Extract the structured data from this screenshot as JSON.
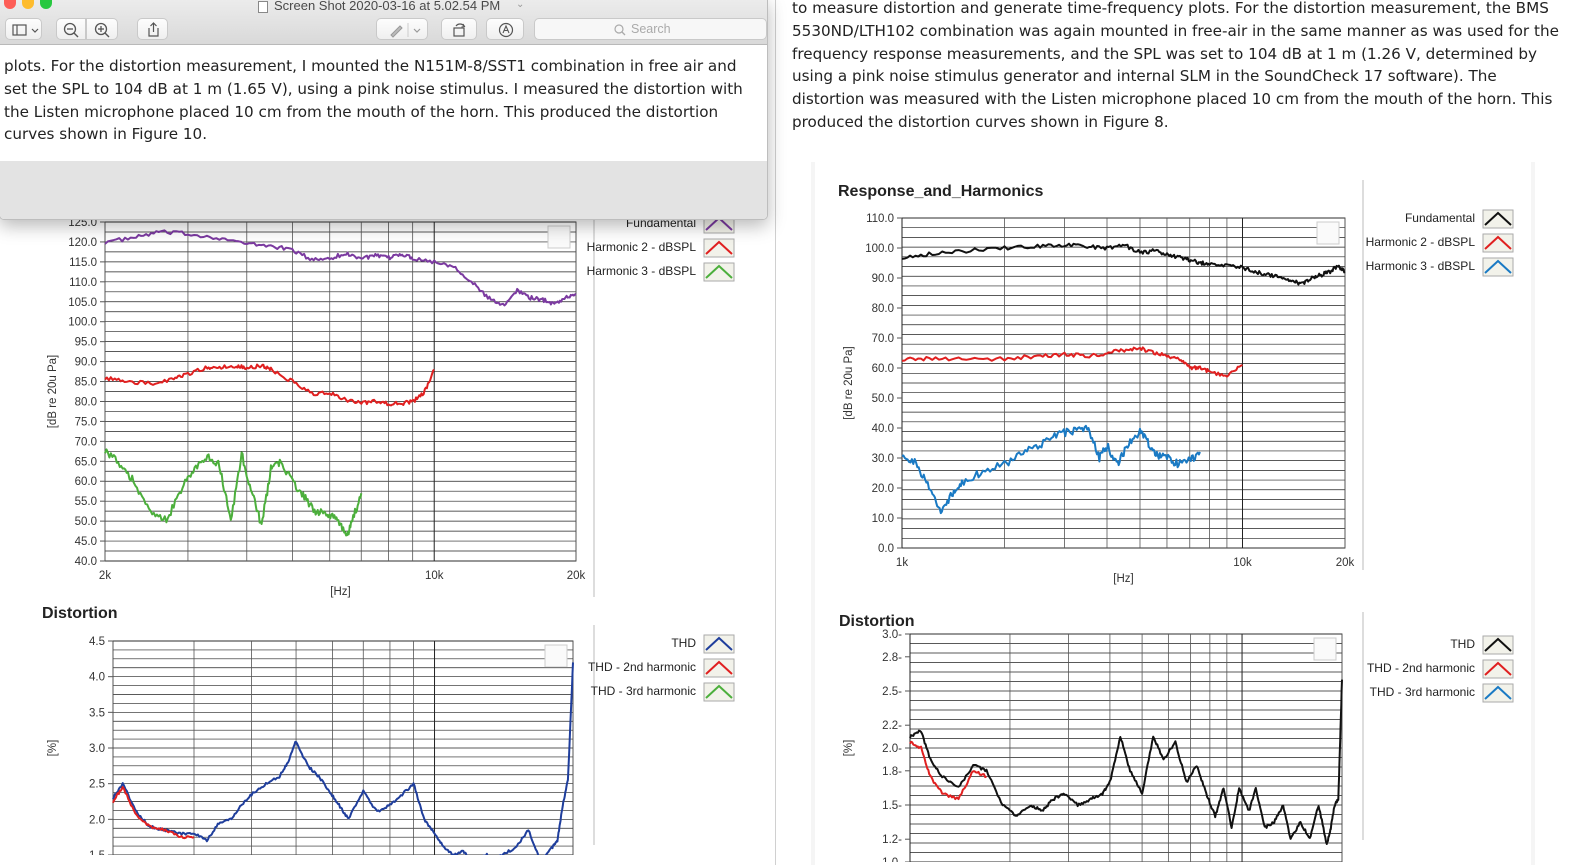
{
  "window": {
    "title": "Screen Shot 2020-03-16 at 5.02.54 PM",
    "search_placeholder": "Search",
    "text": "plots. For the distortion measurement, I mounted the N151M-8/SST1 combination in free air and set the SPL to 104 dB at 1 m (1.65 V), using a pink noise stimulus. I measured the distortion with the Listen microphone placed 10 cm from the mouth of the horn. This produced the distortion curves shown in Figure 10.",
    "icons": [
      "sidebar-toggle-icon",
      "zoom-out-icon",
      "zoom-in-icon",
      "share-icon",
      "markup-pen-icon",
      "rotate-icon",
      "annotate-icon",
      "search-icon"
    ]
  },
  "right_article": {
    "text": "to measure distortion and generate time-frequency plots. For the distortion measurement, the BMS 5530ND/LTH102 combination was again mounted in free-air in the same manner as was used for the frequency response measurements, and the SPL was set to 104 dB at 1 m (1.26 V, determined by using a pink noise stimulus generator and internal SLM in the SoundCheck 17 software). The distortion was measured with the Listen microphone placed 10 cm from the mouth of the horn. This produced the distortion curves shown in Figure 8."
  },
  "left_article": {
    "chart2_title": "Distortion"
  },
  "chart_data": [
    {
      "id": "left-response",
      "type": "line",
      "title": "",
      "xlabel": "[Hz]",
      "ylabel": "[dB re 20u Pa]",
      "xscale": "log",
      "xlim": [
        2000,
        20000
      ],
      "ylim": [
        40,
        125
      ],
      "xticks": [
        2000,
        10000,
        20000
      ],
      "xtick_labels": [
        "2k",
        "10k",
        "20k"
      ],
      "yticks": [
        40,
        45,
        50,
        55,
        60,
        65,
        70,
        75,
        80,
        85,
        90,
        95,
        100,
        105,
        110,
        115,
        120,
        125
      ],
      "ytick_labels": [
        "40.0",
        "45.0",
        "50.0",
        "55.0",
        "60.0",
        "65.0",
        "70.0",
        "75.0",
        "80.0",
        "85.0",
        "90.0",
        "95.0",
        "100.0",
        "105.0",
        "110.0",
        "115.0",
        "120.0",
        "125.0"
      ],
      "legend_position": "right",
      "series": [
        {
          "name": "Fundamental",
          "color": "#7b3aa0",
          "x": [
            2000,
            2300,
            2600,
            3000,
            3500,
            4000,
            4500,
            5000,
            5500,
            6000,
            6500,
            7000,
            7500,
            8000,
            8500,
            9000,
            10000,
            11000,
            12000,
            13000,
            14000,
            15000,
            16000,
            17000,
            18000,
            19000,
            20000
          ],
          "y": [
            120,
            121,
            122.5,
            122,
            121,
            119.5,
            119,
            118,
            115.5,
            116,
            117,
            116,
            116.5,
            116,
            117,
            116,
            115,
            114,
            110,
            106,
            104,
            108,
            106,
            105.5,
            104.5,
            106,
            107
          ]
        },
        {
          "name": "Harmonic 2 - dBSPL",
          "color": "#e02020",
          "x": [
            2000,
            2200,
            2500,
            2800,
            3000,
            3300,
            3500,
            3800,
            4000,
            4300,
            4500,
            5000,
            5500,
            6000,
            6500,
            7000,
            7500,
            8000,
            8500,
            9000,
            9500,
            10000
          ],
          "y": [
            86,
            85,
            84.5,
            85.5,
            87,
            88.5,
            88.5,
            89,
            88.5,
            89,
            88,
            85,
            82,
            82,
            80.5,
            79.5,
            80,
            79.5,
            79.5,
            80,
            82,
            88
          ]
        },
        {
          "name": "Harmonic 3 - dBSPL",
          "color": "#4caf3c",
          "x": [
            2000,
            2150,
            2300,
            2500,
            2700,
            2900,
            3100,
            3300,
            3500,
            3700,
            3900,
            4100,
            4300,
            4500,
            4700,
            5000,
            5300,
            5600,
            5900,
            6200,
            6500,
            6700,
            7000
          ],
          "y": [
            68,
            64,
            60,
            52,
            50,
            58,
            63,
            66,
            64,
            50,
            67,
            57,
            49,
            63,
            65,
            60,
            56,
            52,
            52,
            51,
            46,
            50,
            57
          ]
        }
      ]
    },
    {
      "id": "left-distortion",
      "type": "line",
      "title": "Distortion",
      "xlabel": "",
      "ylabel": "[%]",
      "xscale": "log",
      "xlim": [
        2000,
        20000
      ],
      "ylim": [
        1.5,
        4.5
      ],
      "yticks": [
        1.5,
        2.0,
        2.5,
        3.0,
        3.5,
        4.0,
        4.5
      ],
      "ytick_labels": [
        "1.5",
        "2.0",
        "2.5",
        "3.0",
        "3.5",
        "4.0",
        "4.5"
      ],
      "legend_position": "right",
      "series": [
        {
          "name": "THD",
          "color": "#1f3e9c",
          "x": [
            2000,
            2100,
            2250,
            2400,
            2600,
            2800,
            3000,
            3200,
            3400,
            3600,
            3800,
            4000,
            4300,
            4600,
            4800,
            5000,
            5300,
            5600,
            5900,
            6200,
            6500,
            7000,
            7500,
            8000,
            8500,
            9000,
            9500,
            10000,
            10500,
            11000,
            11500,
            12000,
            12500,
            13000,
            13500,
            14000,
            15000,
            16000,
            17000,
            18000,
            18500,
            19000,
            19500,
            20000
          ],
          "y": [
            2.3,
            2.5,
            2.1,
            1.9,
            1.85,
            1.8,
            1.8,
            1.7,
            1.95,
            2.0,
            2.2,
            2.35,
            2.5,
            2.6,
            2.8,
            3.1,
            2.75,
            2.6,
            2.4,
            2.2,
            2.0,
            2.4,
            2.1,
            2.2,
            2.35,
            2.5,
            2.0,
            1.8,
            1.6,
            1.5,
            1.55,
            1.45,
            1.45,
            1.5,
            1.45,
            1.5,
            1.6,
            1.85,
            1.4,
            1.6,
            1.7,
            2.2,
            2.55,
            4.2
          ]
        },
        {
          "name": "THD - 2nd harmonic",
          "color": "#e02020",
          "x": [
            2000,
            2100,
            2250,
            2400,
            2600,
            2800,
            3000
          ],
          "y": [
            2.25,
            2.45,
            2.05,
            1.9,
            1.85,
            1.75,
            1.75
          ]
        },
        {
          "name": "THD - 3rd harmonic",
          "color": "#4caf3c",
          "x": [],
          "y": []
        }
      ]
    },
    {
      "id": "right-response",
      "type": "line",
      "title": "Response_and_Harmonics",
      "xlabel": "[Hz]",
      "ylabel": "[dB re 20u Pa]",
      "xscale": "log",
      "xlim": [
        1000,
        20000
      ],
      "ylim": [
        0,
        110
      ],
      "xticks": [
        1000,
        10000,
        20000
      ],
      "xtick_labels": [
        "1k",
        "10k",
        "20k"
      ],
      "yticks": [
        0,
        10,
        20,
        30,
        40,
        50,
        60,
        70,
        80,
        90,
        100,
        110
      ],
      "ytick_labels": [
        "0.0",
        "10.0",
        "20.0",
        "30.0",
        "40.0",
        "50.0",
        "60.0",
        "70.0",
        "80.0",
        "90.0",
        "100.0",
        "110.0"
      ],
      "legend_position": "right",
      "series": [
        {
          "name": "Fundamental",
          "color": "#111111",
          "x": [
            1000,
            1200,
            1500,
            2000,
            2500,
            3000,
            3500,
            4000,
            4500,
            5000,
            5500,
            6000,
            6500,
            7000,
            7500,
            8000,
            9000,
            10000,
            11000,
            12000,
            13000,
            14000,
            15000,
            16000,
            17000,
            18000,
            19000,
            20000
          ],
          "y": [
            97,
            98,
            99,
            100,
            100.5,
            101,
            100.5,
            100,
            101,
            98.5,
            99,
            98,
            97,
            96,
            95,
            95,
            94,
            93.5,
            92,
            91,
            90,
            89,
            88,
            90,
            91,
            92,
            94,
            92
          ]
        },
        {
          "name": "Harmonic 2 - dBSPL",
          "color": "#e02020",
          "x": [
            1000,
            1200,
            1500,
            2000,
            2500,
            3000,
            3500,
            4000,
            4500,
            5000,
            5500,
            6000,
            6500,
            7000,
            7500,
            8000,
            9000,
            10000
          ],
          "y": [
            63,
            63,
            63,
            63,
            64,
            64.5,
            64,
            65,
            66,
            66.5,
            65,
            64,
            63,
            60,
            60,
            59,
            57,
            61
          ]
        },
        {
          "name": "Harmonic 3 - dBSPL",
          "color": "#1a7ac4",
          "x": [
            1000,
            1100,
            1200,
            1300,
            1400,
            1500,
            1700,
            2000,
            2300,
            2600,
            2900,
            3200,
            3500,
            3800,
            4000,
            4300,
            4600,
            5000,
            5300,
            5600,
            6000,
            6500,
            7000,
            7500
          ],
          "y": [
            32,
            28,
            20,
            12,
            18,
            22,
            25,
            28,
            32,
            35,
            38,
            39,
            40,
            30,
            34,
            28,
            34,
            39,
            35,
            31,
            30,
            28,
            29,
            32
          ]
        }
      ]
    },
    {
      "id": "right-distortion",
      "type": "line",
      "title": "Distortion",
      "xlabel": "",
      "ylabel": "[%]",
      "xscale": "log",
      "xlim": [
        1000,
        20000
      ],
      "ylim": [
        1.0,
        3.0
      ],
      "yticks": [
        1.0,
        1.2,
        1.5,
        1.8,
        2.0,
        2.2,
        2.5,
        2.8,
        3.0
      ],
      "ytick_labels": [
        "1.0-",
        "1.2-",
        "1.5-",
        "1.8-",
        "2.0-",
        "2.2-",
        "2.5-",
        "2.8-",
        "3.0-"
      ],
      "legend_position": "right",
      "series": [
        {
          "name": "THD",
          "color": "#111111",
          "x": [
            1000,
            1080,
            1150,
            1250,
            1400,
            1550,
            1700,
            1900,
            2100,
            2300,
            2500,
            2700,
            2900,
            3200,
            3500,
            3800,
            4000,
            4300,
            4600,
            5000,
            5400,
            5800,
            6300,
            6800,
            7300,
            7800,
            8300,
            8800,
            9300,
            9800,
            10500,
            11000,
            11700,
            12500,
            13300,
            14000,
            15000,
            16000,
            17000,
            18000,
            18500,
            19000,
            19500,
            20000
          ],
          "y": [
            2.1,
            2.15,
            1.9,
            1.75,
            1.65,
            1.85,
            1.8,
            1.5,
            1.4,
            1.5,
            1.45,
            1.55,
            1.6,
            1.5,
            1.55,
            1.6,
            1.7,
            2.1,
            1.8,
            1.6,
            2.1,
            1.9,
            2.05,
            1.7,
            1.85,
            1.6,
            1.4,
            1.65,
            1.3,
            1.65,
            1.45,
            1.65,
            1.3,
            1.35,
            1.5,
            1.2,
            1.35,
            1.2,
            1.5,
            1.15,
            1.3,
            1.5,
            1.55,
            2.6
          ]
        },
        {
          "name": "THD - 2nd harmonic",
          "color": "#e02020",
          "x": [
            1000,
            1080,
            1150,
            1250,
            1400,
            1550,
            1700
          ],
          "y": [
            2.05,
            2.0,
            1.75,
            1.6,
            1.55,
            1.8,
            1.75
          ]
        },
        {
          "name": "THD - 3rd harmonic",
          "color": "#1a7ac4",
          "x": [],
          "y": []
        }
      ]
    }
  ]
}
